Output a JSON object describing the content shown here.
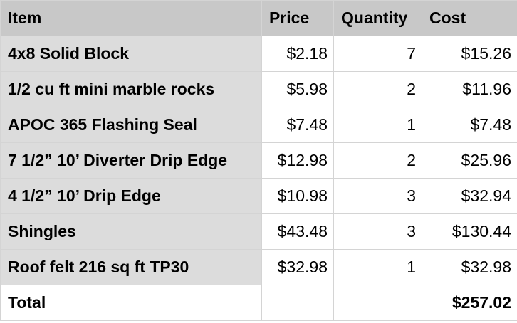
{
  "headers": {
    "item": "Item",
    "price": "Price",
    "quantity": "Quantity",
    "cost": "Cost"
  },
  "rows": [
    {
      "item": "4x8 Solid Block",
      "price": "$2.18",
      "quantity": "7",
      "cost": "$15.26"
    },
    {
      "item": "1/2 cu ft mini marble rocks",
      "price": "$5.98",
      "quantity": "2",
      "cost": "$11.96"
    },
    {
      "item": "APOC 365 Flashing Seal",
      "price": "$7.48",
      "quantity": "1",
      "cost": "$7.48"
    },
    {
      "item": "7 1/2” 10’ Diverter Drip Edge",
      "price": "$12.98",
      "quantity": "2",
      "cost": "$25.96"
    },
    {
      "item": "4 1/2” 10’ Drip Edge",
      "price": "$10.98",
      "quantity": "3",
      "cost": "$32.94"
    },
    {
      "item": "Shingles",
      "price": "$43.48",
      "quantity": "3",
      "cost": "$130.44"
    },
    {
      "item": "Roof felt 216 sq ft TP30",
      "price": "$32.98",
      "quantity": "1",
      "cost": "$32.98"
    }
  ],
  "footer": {
    "label": "Total",
    "value": "$257.02"
  }
}
